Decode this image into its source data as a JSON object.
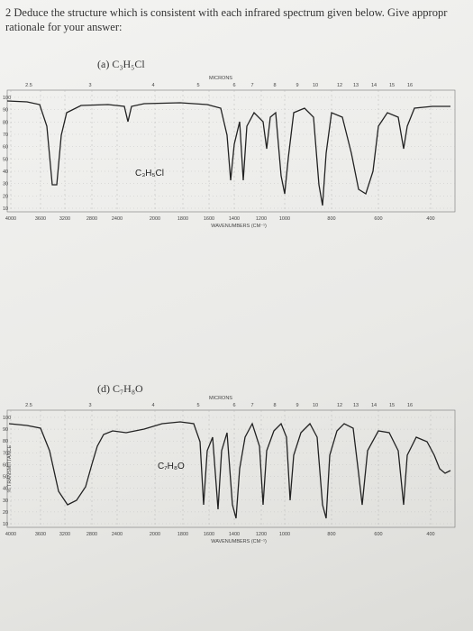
{
  "header": {
    "line1": "2 Deduce the structure which is consistent with each infrared spectrum given below. Give appropr",
    "line2": "rationale for your answer:"
  },
  "spectra": [
    {
      "label": "(a) C₃H₅Cl",
      "formula": "C₃H₅Cl",
      "top_axis": "MICRONS",
      "microns": [
        "2.5",
        "3",
        "4",
        "5",
        "6",
        "7",
        "8",
        "9",
        "10",
        "12",
        "13",
        "14",
        "15",
        "16"
      ],
      "wavenumbers": [
        "4000",
        "3600",
        "3200",
        "2800",
        "2400",
        "2000",
        "1800",
        "1600",
        "1400",
        "1200",
        "1000",
        "800",
        "600",
        "400"
      ],
      "x_axis": "WAVENUMBERS (CM⁻¹)",
      "y_labels": [
        "100",
        "90",
        "80",
        "70",
        "60",
        "50",
        "40",
        "30",
        "20",
        "10"
      ]
    },
    {
      "label": "(d) C₇H₈O",
      "formula": "C₇H₈O",
      "top_axis": "MICRONS",
      "microns": [
        "2.5",
        "3",
        "4",
        "5",
        "6",
        "7",
        "8",
        "9",
        "10",
        "12",
        "13",
        "14",
        "15",
        "16"
      ],
      "wavenumbers": [
        "4000",
        "3600",
        "3200",
        "2800",
        "2400",
        "2000",
        "1800",
        "1600",
        "1400",
        "1200",
        "1000",
        "800",
        "600",
        "400"
      ],
      "x_axis": "WAVENUMBERS (CM⁻¹)",
      "y_axis": "% TRANSMITTANCE",
      "y_labels": [
        "100",
        "90",
        "80",
        "70",
        "60",
        "50",
        "40",
        "30",
        "20",
        "10"
      ]
    }
  ]
}
